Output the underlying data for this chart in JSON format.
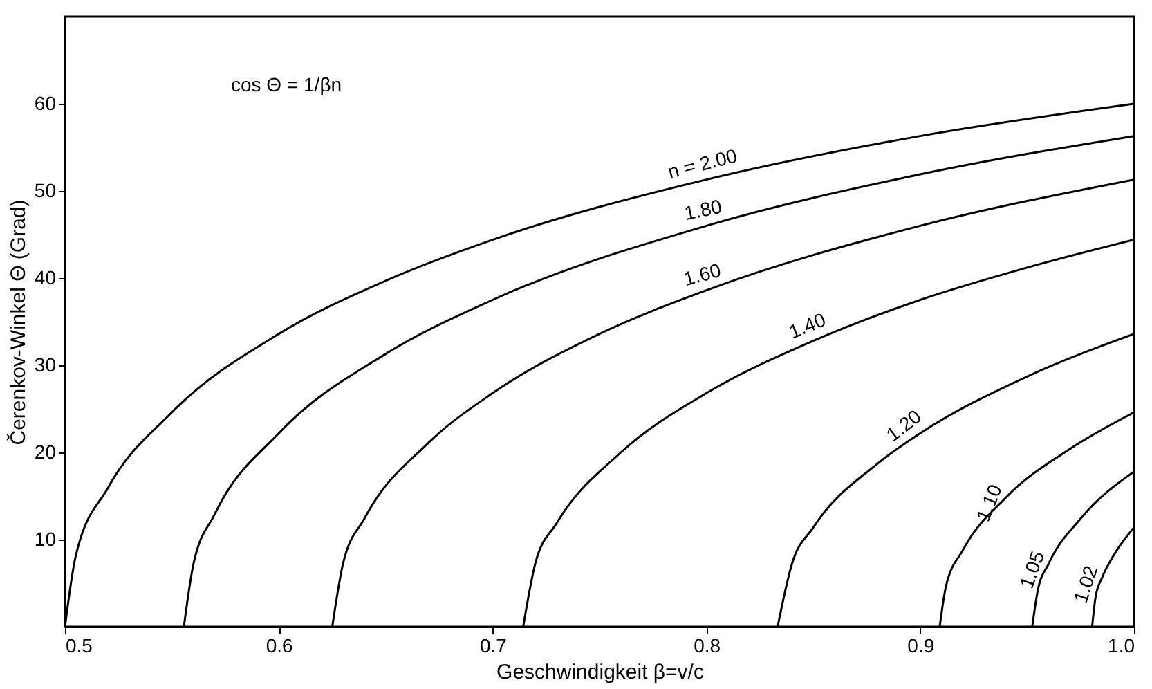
{
  "chart_data": {
    "type": "line",
    "xlabel": "Geschwindigkeit β=v/c",
    "ylabel": "Čerenkov-Winkel Θ (Grad)",
    "xlim": [
      0.5,
      1.0
    ],
    "xticks": [
      0.5,
      0.6,
      0.7,
      0.8,
      0.9,
      {
        "value": 1.0,
        "label": "1.0"
      }
    ],
    "ylim": [
      0,
      70
    ],
    "yticks": [
      10,
      20,
      30,
      40,
      50,
      60
    ],
    "grid": false,
    "marker": "none",
    "line_style": "solid",
    "series": [
      {
        "color": "#000000",
        "x": [
          0.5,
          0.505,
          0.52,
          0.55,
          0.6,
          0.65,
          0.7,
          0.8,
          0.9,
          1.0
        ],
        "values": [
          0,
          8.1,
          15.9,
          24.6,
          33.6,
          39.7,
          44.4,
          51.3,
          56.3,
          60.0
        ]
      },
      {
        "color": "#000000",
        "x": [
          0.5556,
          0.56,
          0.57,
          0.6,
          0.65,
          0.7,
          0.8,
          0.9,
          1.0
        ],
        "values": [
          0,
          7.1,
          12.9,
          22.2,
          31.3,
          37.5,
          46.0,
          51.9,
          56.3
        ]
      },
      {
        "color": "#000000",
        "x": [
          0.625,
          0.63,
          0.64,
          0.67,
          0.7,
          0.75,
          0.8,
          0.9,
          1.0
        ],
        "values": [
          0,
          7.2,
          12.4,
          21.1,
          26.8,
          33.6,
          38.6,
          46.0,
          51.3
        ]
      },
      {
        "color": "#000000",
        "x": [
          0.7143,
          0.72,
          0.73,
          0.76,
          0.8,
          0.85,
          0.9,
          0.95,
          1.0
        ],
        "values": [
          0,
          7.3,
          11.9,
          20.0,
          26.8,
          32.8,
          37.5,
          41.2,
          44.4
        ]
      },
      {
        "color": "#000000",
        "x": [
          0.8333,
          0.84,
          0.85,
          0.88,
          0.9,
          0.95,
          1.0
        ],
        "values": [
          0,
          7.2,
          11.4,
          18.7,
          22.2,
          28.7,
          33.6
        ]
      },
      {
        "color": "#000000",
        "x": [
          0.9091,
          0.912,
          0.92,
          0.94,
          0.97,
          1.0
        ],
        "values": [
          0,
          4.6,
          8.8,
          14.8,
          20.4,
          24.6
        ]
      },
      {
        "color": "#000000",
        "x": [
          0.9524,
          0.955,
          0.96,
          0.975,
          1.0
        ],
        "values": [
          0,
          4.2,
          7.2,
          12.4,
          17.8
        ]
      },
      {
        "color": "#000000",
        "x": [
          0.9804,
          0.982,
          0.985,
          0.99,
          1.0
        ],
        "values": [
          0,
          3.4,
          5.6,
          8.0,
          11.4
        ]
      }
    ],
    "annotations": [
      {
        "text": "n = 2.00",
        "x": 0.8,
        "y": 51.3
      },
      {
        "text": "1.80",
        "x": 0.8,
        "y": 46.0
      },
      {
        "text": "1.60",
        "x": 0.8,
        "y": 38.6
      },
      {
        "text": "1.40",
        "x": 0.85,
        "y": 32.8
      },
      {
        "text": "1.20",
        "x": 0.9,
        "y": 22.2
      },
      {
        "text": "1.10",
        "x": 0.94,
        "y": 14.8
      },
      {
        "text": "1.05",
        "x": 0.96,
        "y": 7.2
      },
      {
        "text": "1.02",
        "x": 0.985,
        "y": 5.6
      },
      "cos Θ = 1/βn"
    ]
  }
}
